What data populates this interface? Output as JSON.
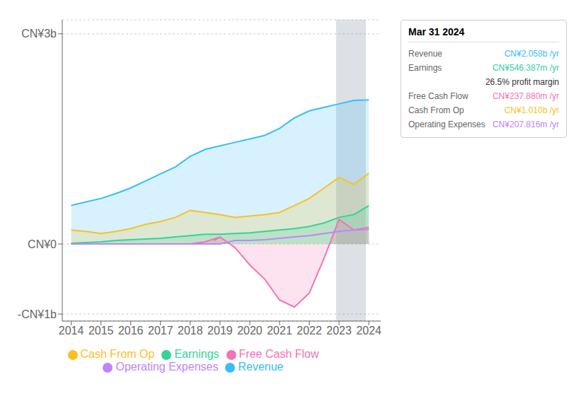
{
  "chart_data": {
    "type": "area",
    "title": "Mar 31 2024",
    "xlim": [
      2013.7,
      2024.4
    ],
    "xticks": [
      2014,
      2015,
      2016,
      2017,
      2018,
      2019,
      2020,
      2021,
      2022,
      2023,
      2024
    ],
    "ylim": [
      -1.1,
      3.2
    ],
    "yticks": [
      {
        "value": -1.0,
        "label": "-CN¥1b"
      },
      {
        "value": 0.0,
        "label": "CN¥0"
      },
      {
        "value": 3.0,
        "label": "CN¥3b"
      }
    ],
    "grid": true,
    "legend": "bottom",
    "highlight": {
      "x": [
        2022.9,
        2023.9
      ],
      "color": "#1e2d4a"
    },
    "series": [
      {
        "name": "Revenue",
        "color": "#38bdf8",
        "x": [
          2014,
          2014.5,
          2015,
          2015.5,
          2016,
          2016.5,
          2017,
          2017.5,
          2018,
          2018.5,
          2019,
          2019.5,
          2020,
          2020.5,
          2021,
          2021.5,
          2022,
          2022.5,
          2023,
          2023.5,
          2024
        ],
        "values": [
          0.55,
          0.6,
          0.65,
          0.72,
          0.8,
          0.9,
          1.0,
          1.1,
          1.25,
          1.35,
          1.4,
          1.45,
          1.5,
          1.55,
          1.65,
          1.8,
          1.9,
          1.95,
          2.0,
          2.05,
          2.058
        ]
      },
      {
        "name": "Cash From Op",
        "color": "#fbbf24",
        "x": [
          2014,
          2014.5,
          2015,
          2015.5,
          2016,
          2016.5,
          2017,
          2017.5,
          2018,
          2018.5,
          2019,
          2019.5,
          2020,
          2020.5,
          2021,
          2021.5,
          2022,
          2022.5,
          2023,
          2023.5,
          2024
        ],
        "values": [
          0.2,
          0.18,
          0.15,
          0.18,
          0.22,
          0.28,
          0.32,
          0.38,
          0.48,
          0.45,
          0.42,
          0.38,
          0.4,
          0.42,
          0.45,
          0.55,
          0.65,
          0.8,
          0.95,
          0.85,
          1.01
        ]
      },
      {
        "name": "Earnings",
        "color": "#34d399",
        "x": [
          2014,
          2014.5,
          2015,
          2015.5,
          2016,
          2016.5,
          2017,
          2017.5,
          2018,
          2018.5,
          2019,
          2019.5,
          2020,
          2020.5,
          2021,
          2021.5,
          2022,
          2022.5,
          2023,
          2023.5,
          2024
        ],
        "values": [
          0.01,
          0.02,
          0.03,
          0.05,
          0.06,
          0.07,
          0.08,
          0.1,
          0.12,
          0.14,
          0.14,
          0.15,
          0.16,
          0.18,
          0.2,
          0.22,
          0.25,
          0.3,
          0.38,
          0.42,
          0.546
        ]
      },
      {
        "name": "Free Cash Flow",
        "color": "#f472b6",
        "x": [
          2014,
          2014.5,
          2015,
          2015.5,
          2016,
          2016.5,
          2017,
          2017.5,
          2018,
          2018.5,
          2019,
          2018.8,
          2019.0,
          2019.5,
          2020.0,
          2020.5,
          2021.0,
          2021.5,
          2022.0,
          2022.5,
          2023.0,
          2023.5,
          2024
        ],
        "values": [
          0.0,
          0.0,
          0.0,
          0.0,
          0.0,
          0.0,
          0.0,
          0.0,
          0.0,
          0.03,
          0.1,
          0.05,
          0.1,
          -0.05,
          -0.3,
          -0.5,
          -0.8,
          -0.9,
          -0.7,
          -0.2,
          0.35,
          0.2,
          0.238
        ]
      },
      {
        "name": "Operating Expenses",
        "type": "line",
        "color": "#c084fc",
        "x": [
          2014,
          2014.5,
          2015,
          2015.5,
          2016,
          2016.5,
          2017,
          2017.5,
          2018,
          2018.5,
          2019,
          2019.5,
          2020,
          2020.5,
          2021,
          2021.5,
          2022,
          2022.5,
          2023,
          2023.5,
          2024
        ],
        "values": [
          0.0,
          0.0,
          0.0,
          0.0,
          0.0,
          0.0,
          0.0,
          0.0,
          0.0,
          0.0,
          0.0,
          0.05,
          0.05,
          0.06,
          0.08,
          0.1,
          0.12,
          0.15,
          0.18,
          0.2,
          0.208
        ]
      }
    ],
    "annotations": [
      {
        "label": "Revenue",
        "text": "CN¥2.058b /yr",
        "color": "#38bdf8"
      },
      {
        "label": "Earnings",
        "text": "CN¥546.387m /yr",
        "color": "#34d399"
      },
      {
        "text": "26.5% profit margin"
      },
      {
        "label": "Free Cash Flow",
        "text": "CN¥237.880m /yr",
        "color": "#f472b6"
      },
      {
        "label": "Cash From Op",
        "text": "CN¥1.010b /yr",
        "color": "#fbbf24"
      },
      {
        "label": "Operating Expenses",
        "text": "CN¥207.816m /yr",
        "color": "#c084fc"
      }
    ]
  }
}
